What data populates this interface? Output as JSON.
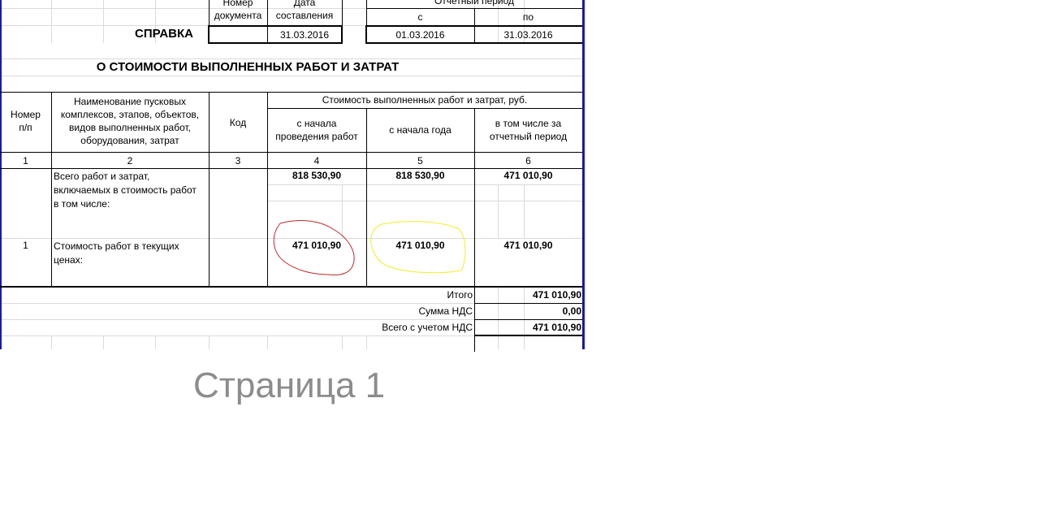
{
  "header": {
    "doc_number_label": "Номер документа",
    "doc_number_label_1": "Номер",
    "doc_number_label_2": "документа",
    "date_label_1": "Дата",
    "date_label_2": "составления",
    "period_label": "Отчетный период",
    "period_from_label": "с",
    "period_to_label": "по",
    "title": "СПРАВКА",
    "doc_number": "",
    "date": "31.03.2016",
    "period_from": "01.03.2016",
    "period_to": "31.03.2016",
    "subtitle": "О СТОИМОСТИ ВЫПОЛНЕННЫХ РАБОТ И ЗАТРАТ"
  },
  "watermark": "Страница 1",
  "table": {
    "col_num_1": "Номер",
    "col_num_2": "п/п",
    "col_name_1": "Наименование пусковых",
    "col_name_2": "комплексов, этапов, объектов,",
    "col_name_3": "видов выполненных работ,",
    "col_name_4": "оборудования, затрат",
    "col_code": "Код",
    "cost_group": "Стоимость выполненных работ и затрат, руб.",
    "col4_1": "с начала",
    "col4_2": "проведения работ",
    "col5": "с начала года",
    "col6_1": "в том числе за",
    "col6_2": "отчетный период",
    "col_numbers": [
      "1",
      "2",
      "3",
      "4",
      "5",
      "6"
    ],
    "rows": [
      {
        "num": "",
        "name_1": "Всего работ и затрат,",
        "name_2": "включаемых в стоимость работ",
        "name_3": "в том числе:",
        "code": "",
        "from_start": "818 530,90",
        "from_year": "818 530,90",
        "period": "471 010,90"
      },
      {
        "num": "1",
        "name_1": "Стоимость работ в текущих",
        "name_2": "ценах:",
        "code": "",
        "from_start": "471 010,90",
        "from_year": "471 010,90",
        "period": "471 010,90"
      }
    ]
  },
  "totals": [
    {
      "label": "Итого",
      "value": "471 010,90"
    },
    {
      "label": "Сумма НДС",
      "value": "0,00"
    },
    {
      "label": "Всего с учетом НДС",
      "value": "471 010,90"
    }
  ],
  "colors": {
    "page_border": "#1a1aa0",
    "circle_red": "#c0262b",
    "circle_yellow": "#f2ee2a",
    "watermark": "#8c8c8c"
  }
}
